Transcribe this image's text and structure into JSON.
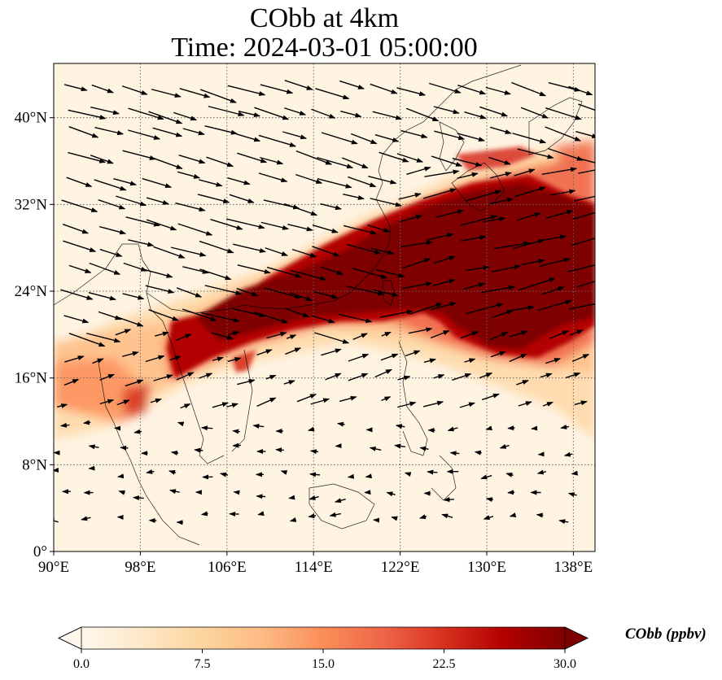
{
  "title": {
    "line1": "CObb at 4km",
    "line2": "Time: 2024-03-01 05:00:00"
  },
  "map": {
    "projection": "PlateCarree",
    "lon_range": [
      90,
      140
    ],
    "lat_range": [
      0,
      45
    ],
    "gridlines": true,
    "coastlines": true,
    "colormap": "OrRd",
    "lon_ticks": [
      {
        "value": 90,
        "label": "90°E"
      },
      {
        "value": 98,
        "label": "98°E"
      },
      {
        "value": 106,
        "label": "106°E"
      },
      {
        "value": 114,
        "label": "114°E"
      },
      {
        "value": 122,
        "label": "122°E"
      },
      {
        "value": 130,
        "label": "130°E"
      },
      {
        "value": 138,
        "label": "138°E"
      }
    ],
    "lat_ticks": [
      {
        "value": 0,
        "label": "0°"
      },
      {
        "value": 8,
        "label": "8°N"
      },
      {
        "value": 16,
        "label": "16°N"
      },
      {
        "value": 24,
        "label": "24°N"
      },
      {
        "value": 32,
        "label": "32°N"
      },
      {
        "value": 40,
        "label": "40°N"
      }
    ]
  },
  "colorbar": {
    "title": "CObb (ppbv)",
    "min": 0.0,
    "max": 30.0,
    "extend": "both",
    "ticks": [
      "0.0",
      "7.5",
      "15.0",
      "22.5",
      "30.0"
    ],
    "colors": [
      "#fff7ec",
      "#fee8c8",
      "#fdd49e",
      "#fdbb84",
      "#fc8d59",
      "#ef6548",
      "#d7301f",
      "#b30000",
      "#7f0000"
    ]
  }
}
